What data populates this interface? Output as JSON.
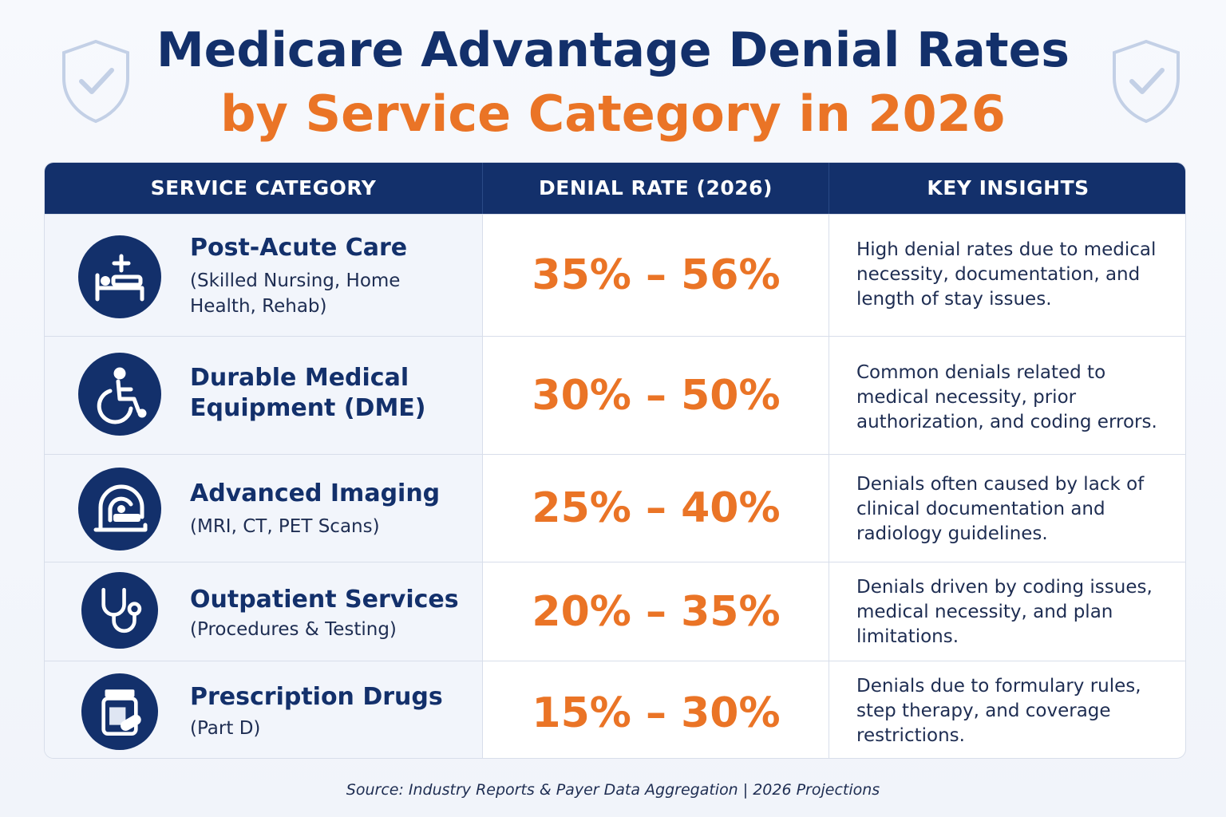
{
  "title": {
    "line1": "Medicare Advantage Denial Rates",
    "line2": "by Service Category in 2026"
  },
  "colors": {
    "navy": "#13306b",
    "orange": "#ea7426",
    "row_tint": "#f2f5fb"
  },
  "icons": {
    "header_left": "shield-check-icon",
    "header_right": "shield-check-icon"
  },
  "chart_data": {
    "type": "table",
    "columns": [
      "SERVICE CATEGORY",
      "DENIAL RATE (2026)",
      "KEY INSIGHTS"
    ],
    "rows": [
      {
        "category": "Post-Acute Care",
        "sub": "(Skilled Nursing, Home Health, Rehab)",
        "icon": "hospital-bed-icon",
        "rate_low": 35,
        "rate_high": 56,
        "rate_label": "35% – 56%",
        "insight": "High denial rates due to medical necessity, documentation, and length of stay issues."
      },
      {
        "category": "Durable Medical Equipment (DME)",
        "sub": "",
        "icon": "wheelchair-icon",
        "rate_low": 30,
        "rate_high": 50,
        "rate_label": "30% – 50%",
        "insight": "Common denials related to medical necessity, prior authorization, and coding errors."
      },
      {
        "category": "Advanced Imaging",
        "sub": "(MRI, CT, PET Scans)",
        "icon": "mri-scanner-icon",
        "rate_low": 25,
        "rate_high": 40,
        "rate_label": "25% – 40%",
        "insight": "Denials often caused by lack of clinical documentation and radiology guidelines."
      },
      {
        "category": "Outpatient Services",
        "sub": "(Procedures & Testing)",
        "icon": "stethoscope-icon",
        "rate_low": 20,
        "rate_high": 35,
        "rate_label": "20% – 35%",
        "insight": "Denials driven by coding issues, medical necessity, and plan limitations."
      },
      {
        "category": "Prescription Drugs",
        "sub": "(Part D)",
        "icon": "pill-bottle-icon",
        "rate_low": 15,
        "rate_high": 30,
        "rate_label": "15% – 30%",
        "insight": "Denials due to formulary rules, step therapy, and coverage restrictions."
      }
    ]
  },
  "source": "Source: Industry Reports & Payer Data Aggregation  |  2026 Projections"
}
